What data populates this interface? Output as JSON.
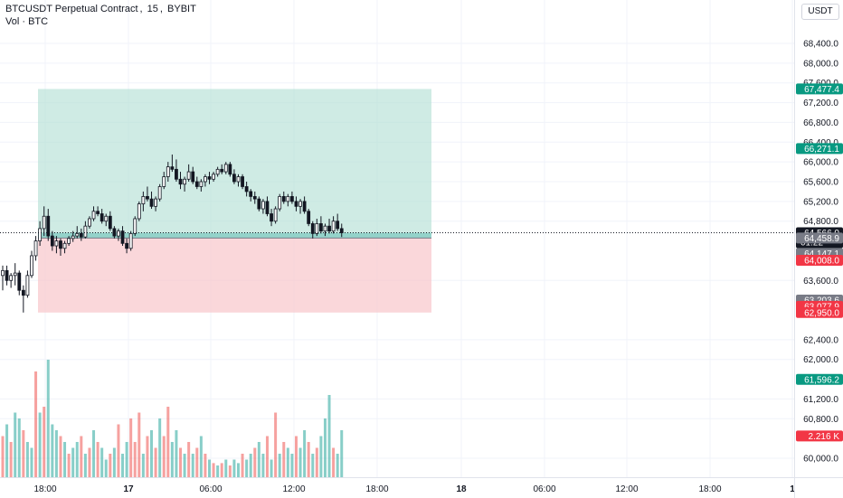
{
  "header": {
    "symbol": "BTCUSDT Perpetual Contract",
    "interval": "15",
    "exchange": "BYBIT",
    "vol_label": "Vol · BTC",
    "currency": "USDT"
  },
  "colors": {
    "up": "#26a69a",
    "down": "#ef5350",
    "candle_up_body": "#ffffff",
    "candle_down_body": "#131722",
    "target_zone": "#b2dfd4",
    "stop_zone": "#f8c6cb",
    "last_price": "#131722",
    "grey_badge": "#787b86"
  },
  "price_axis": {
    "ticks": [
      "68,400.0",
      "68,000.0",
      "67,600.0",
      "67,200.0",
      "66,800.0",
      "66,400.0",
      "66,000.0",
      "65,600.0",
      "65,200.0",
      "64,800.0",
      "63,600.0",
      "62,400.0",
      "62,000.0",
      "61,200.0",
      "60,800.0",
      "60,000.0"
    ],
    "tick_values": [
      68400,
      68000,
      67600,
      67200,
      66800,
      66400,
      66000,
      65600,
      65200,
      64800,
      63600,
      62400,
      62000,
      61200,
      60800,
      60000
    ],
    "badges": [
      {
        "text": "67,477.4",
        "value": 67477.4,
        "color": "#089981"
      },
      {
        "text": "66,271.1",
        "value": 66271.1,
        "color": "#089981"
      },
      {
        "text": "64,566.0",
        "value": 64566.0,
        "color": "#131722",
        "sub": "01:22"
      },
      {
        "text": "64,458.9",
        "value": 64458.9,
        "color": "#787b86"
      },
      {
        "text": "64,147.1",
        "value": 64147.1,
        "color": "#787b86"
      },
      {
        "text": "64,008.0",
        "value": 64008.0,
        "color": "#f23645"
      },
      {
        "text": "63,203.6",
        "value": 63203.6,
        "color": "#787b86"
      },
      {
        "text": "63,077.9",
        "value": 63077.9,
        "color": "#f23645"
      },
      {
        "text": "62,950.0",
        "value": 62950.0,
        "color": "#f23645"
      },
      {
        "text": "61,596.2",
        "value": 61596.2,
        "color": "#089981"
      },
      {
        "text": "2.216 K",
        "value": 60450,
        "color": "#f23645"
      }
    ]
  },
  "time_axis": {
    "labels": [
      "18:00",
      "17",
      "06:00",
      "12:00",
      "18:00",
      "18",
      "06:00",
      "12:00",
      "18:00",
      "1"
    ],
    "bold": [
      false,
      true,
      false,
      false,
      false,
      true,
      false,
      false,
      false,
      true
    ]
  },
  "position_tool": {
    "entry_price": 64458.9,
    "target_price": 67477.4,
    "stop_price": 62950.0
  },
  "chart_data": {
    "type": "candlestick",
    "symbol": "BTCUSDT Perpetual Contract",
    "interval": "15",
    "exchange": "BYBIT",
    "last_price": 64566.0,
    "countdown": "01:22",
    "volume_unit": "BTC",
    "ylim": [
      59800,
      68600
    ],
    "candles": [
      [
        63700,
        63900,
        63400,
        63800
      ],
      [
        63800,
        63900,
        63500,
        63600
      ],
      [
        63600,
        63750,
        63450,
        63700
      ],
      [
        63700,
        63950,
        63500,
        63750
      ],
      [
        63750,
        63800,
        63300,
        63400
      ],
      [
        63400,
        63500,
        62950,
        63300
      ],
      [
        63300,
        63800,
        63250,
        63700
      ],
      [
        63700,
        64200,
        63650,
        64100
      ],
      [
        64100,
        64500,
        64000,
        64400
      ],
      [
        64400,
        64800,
        64300,
        64650
      ],
      [
        64650,
        65100,
        64500,
        64900
      ],
      [
        64900,
        65050,
        64400,
        64500
      ],
      [
        64500,
        64600,
        64200,
        64300
      ],
      [
        64300,
        64500,
        64150,
        64400
      ],
      [
        64400,
        64450,
        64100,
        64250
      ],
      [
        64250,
        64400,
        64150,
        64350
      ],
      [
        64350,
        64500,
        64300,
        64450
      ],
      [
        64450,
        64600,
        64380,
        64500
      ],
      [
        64500,
        64700,
        64450,
        64550
      ],
      [
        64550,
        64650,
        64400,
        64480
      ],
      [
        64480,
        64800,
        64450,
        64700
      ],
      [
        64700,
        64900,
        64650,
        64850
      ],
      [
        64850,
        65100,
        64800,
        65000
      ],
      [
        65000,
        65100,
        64900,
        64950
      ],
      [
        64950,
        65050,
        64750,
        64800
      ],
      [
        64800,
        64950,
        64700,
        64900
      ],
      [
        64900,
        65000,
        64600,
        64650
      ],
      [
        64650,
        64700,
        64450,
        64500
      ],
      [
        64500,
        64650,
        64400,
        64600
      ],
      [
        64600,
        64700,
        64300,
        64350
      ],
      [
        64350,
        64450,
        64150,
        64250
      ],
      [
        64250,
        64600,
        64200,
        64550
      ],
      [
        64550,
        64900,
        64500,
        64850
      ],
      [
        64850,
        65200,
        64800,
        65150
      ],
      [
        65150,
        65400,
        65000,
        65300
      ],
      [
        65300,
        65500,
        65200,
        65250
      ],
      [
        65250,
        65400,
        65050,
        65100
      ],
      [
        65100,
        65300,
        65000,
        65250
      ],
      [
        65250,
        65550,
        65200,
        65500
      ],
      [
        65500,
        65800,
        65450,
        65700
      ],
      [
        65700,
        66000,
        65600,
        65900
      ],
      [
        65900,
        66150,
        65800,
        65850
      ],
      [
        65850,
        66050,
        65600,
        65650
      ],
      [
        65650,
        65800,
        65450,
        65550
      ],
      [
        65550,
        65700,
        65400,
        65650
      ],
      [
        65650,
        65950,
        65600,
        65800
      ],
      [
        65800,
        65900,
        65550,
        65600
      ],
      [
        65600,
        65700,
        65450,
        65500
      ],
      [
        65500,
        65650,
        65400,
        65600
      ],
      [
        65600,
        65750,
        65500,
        65700
      ],
      [
        65700,
        65800,
        65550,
        65650
      ],
      [
        65650,
        65800,
        65600,
        65750
      ],
      [
        65750,
        65900,
        65700,
        65850
      ],
      [
        65850,
        65950,
        65750,
        65800
      ],
      [
        65800,
        66000,
        65750,
        65950
      ],
      [
        65950,
        66000,
        65700,
        65750
      ],
      [
        65750,
        65850,
        65550,
        65600
      ],
      [
        65600,
        65750,
        65500,
        65700
      ],
      [
        65700,
        65750,
        65450,
        65500
      ],
      [
        65500,
        65600,
        65300,
        65400
      ],
      [
        65400,
        65450,
        65200,
        65300
      ],
      [
        65300,
        65400,
        65150,
        65250
      ],
      [
        65250,
        65300,
        65000,
        65050
      ],
      [
        65050,
        65250,
        64950,
        65200
      ],
      [
        65200,
        65300,
        64900,
        64950
      ],
      [
        64950,
        65050,
        64700,
        64800
      ],
      [
        64800,
        65100,
        64750,
        65050
      ],
      [
        65050,
        65350,
        65000,
        65300
      ],
      [
        65300,
        65400,
        65150,
        65200
      ],
      [
        65200,
        65350,
        65100,
        65300
      ],
      [
        65300,
        65400,
        65150,
        65200
      ],
      [
        65200,
        65300,
        65000,
        65100
      ],
      [
        65100,
        65250,
        64950,
        65200
      ],
      [
        65200,
        65300,
        64950,
        65000
      ],
      [
        65000,
        65050,
        64700,
        64750
      ],
      [
        64750,
        64800,
        64450,
        64550
      ],
      [
        64550,
        64850,
        64500,
        64750
      ],
      [
        64750,
        64900,
        64550,
        64600
      ],
      [
        64600,
        64750,
        64500,
        64700
      ],
      [
        64700,
        64850,
        64550,
        64600
      ],
      [
        64600,
        64900,
        64550,
        64800
      ],
      [
        64800,
        64950,
        64600,
        64650
      ],
      [
        64650,
        64750,
        64480,
        64566
      ]
    ],
    "volumes": [
      [
        0.35,
        0
      ],
      [
        0.45,
        1
      ],
      [
        0.3,
        0
      ],
      [
        0.55,
        1
      ],
      [
        0.5,
        1
      ],
      [
        0.4,
        0
      ],
      [
        0.3,
        1
      ],
      [
        0.25,
        1
      ],
      [
        0.9,
        0
      ],
      [
        0.55,
        1
      ],
      [
        0.6,
        0
      ],
      [
        1.0,
        1
      ],
      [
        0.45,
        1
      ],
      [
        0.4,
        1
      ],
      [
        0.35,
        0
      ],
      [
        0.3,
        1
      ],
      [
        0.2,
        0
      ],
      [
        0.25,
        1
      ],
      [
        0.3,
        1
      ],
      [
        0.35,
        0
      ],
      [
        0.2,
        1
      ],
      [
        0.25,
        0
      ],
      [
        0.4,
        1
      ],
      [
        0.3,
        0
      ],
      [
        0.25,
        1
      ],
      [
        0.15,
        1
      ],
      [
        0.2,
        0
      ],
      [
        0.25,
        1
      ],
      [
        0.45,
        0
      ],
      [
        0.2,
        1
      ],
      [
        0.3,
        1
      ],
      [
        0.5,
        0
      ],
      [
        0.3,
        0
      ],
      [
        0.55,
        0
      ],
      [
        0.2,
        1
      ],
      [
        0.35,
        0
      ],
      [
        0.4,
        1
      ],
      [
        0.25,
        0
      ],
      [
        0.5,
        1
      ],
      [
        0.35,
        0
      ],
      [
        0.6,
        0
      ],
      [
        0.3,
        1
      ],
      [
        0.4,
        1
      ],
      [
        0.25,
        0
      ],
      [
        0.2,
        1
      ],
      [
        0.3,
        0
      ],
      [
        0.2,
        1
      ],
      [
        0.25,
        0
      ],
      [
        0.35,
        1
      ],
      [
        0.2,
        0
      ],
      [
        0.15,
        1
      ],
      [
        0.12,
        0
      ],
      [
        0.1,
        1
      ],
      [
        0.12,
        0
      ],
      [
        0.15,
        1
      ],
      [
        0.1,
        0
      ],
      [
        0.15,
        1
      ],
      [
        0.12,
        1
      ],
      [
        0.2,
        0
      ],
      [
        0.15,
        1
      ],
      [
        0.2,
        1
      ],
      [
        0.25,
        0
      ],
      [
        0.3,
        1
      ],
      [
        0.2,
        1
      ],
      [
        0.35,
        0
      ],
      [
        0.15,
        1
      ],
      [
        0.55,
        0
      ],
      [
        0.2,
        1
      ],
      [
        0.3,
        0
      ],
      [
        0.25,
        1
      ],
      [
        0.2,
        1
      ],
      [
        0.35,
        0
      ],
      [
        0.25,
        1
      ],
      [
        0.4,
        1
      ],
      [
        0.3,
        0
      ],
      [
        0.2,
        1
      ],
      [
        0.25,
        0
      ],
      [
        0.35,
        1
      ],
      [
        0.5,
        1
      ],
      [
        0.7,
        1
      ],
      [
        0.25,
        0
      ],
      [
        0.2,
        1
      ],
      [
        0.4,
        1
      ]
    ]
  }
}
